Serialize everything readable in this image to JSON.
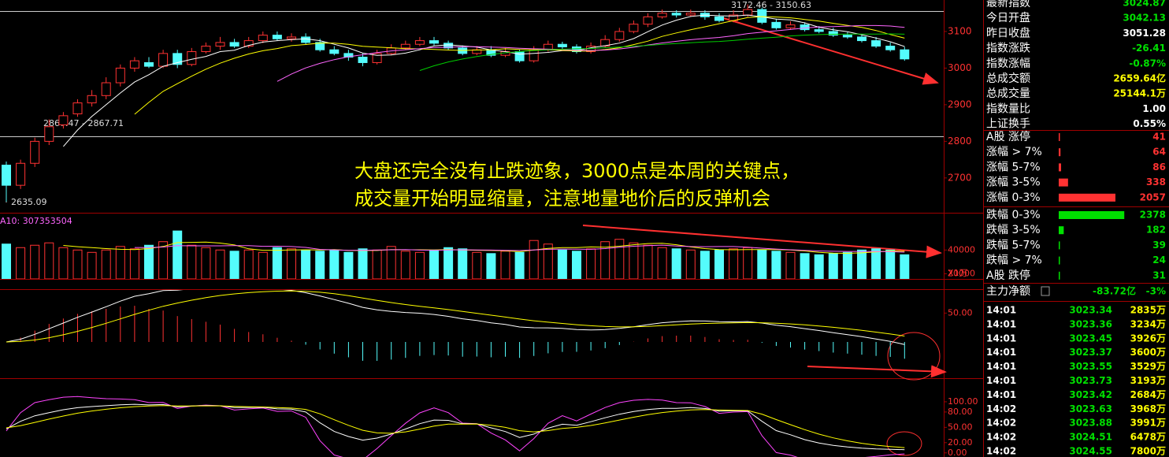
{
  "chart_data": {
    "type": "candlestick",
    "up_color": "#ff3232",
    "down_color": "#54fcfc",
    "ohlc": [
      [
        2735,
        2680,
        2745,
        2635
      ],
      [
        2680,
        2740,
        2750,
        2670
      ],
      [
        2740,
        2800,
        2810,
        2730
      ],
      [
        2800,
        2840,
        2860,
        2790
      ],
      [
        2845,
        2870,
        2880,
        2835
      ],
      [
        2875,
        2905,
        2915,
        2867
      ],
      [
        2905,
        2925,
        2940,
        2895
      ],
      [
        2925,
        2960,
        2975,
        2915
      ],
      [
        2960,
        3000,
        3010,
        2950
      ],
      [
        3000,
        3020,
        3030,
        2990
      ],
      [
        3015,
        3005,
        3030,
        3000
      ],
      [
        3005,
        3040,
        3050,
        3000
      ],
      [
        3040,
        3010,
        3050,
        3000
      ],
      [
        3010,
        3045,
        3055,
        3005
      ],
      [
        3045,
        3060,
        3070,
        3040
      ],
      [
        3060,
        3070,
        3085,
        3050
      ],
      [
        3070,
        3060,
        3080,
        3055
      ],
      [
        3060,
        3075,
        3085,
        3055
      ],
      [
        3075,
        3090,
        3100,
        3068
      ],
      [
        3090,
        3080,
        3100,
        3075
      ],
      [
        3080,
        3085,
        3095,
        3072
      ],
      [
        3085,
        3070,
        3095,
        3065
      ],
      [
        3070,
        3050,
        3080,
        3045
      ],
      [
        3050,
        3040,
        3060,
        3035
      ],
      [
        3040,
        3030,
        3050,
        3020
      ],
      [
        3030,
        3015,
        3040,
        3005
      ],
      [
        3015,
        3040,
        3050,
        3010
      ],
      [
        3040,
        3055,
        3065,
        3035
      ],
      [
        3055,
        3065,
        3075,
        3050
      ],
      [
        3065,
        3075,
        3085,
        3060
      ],
      [
        3075,
        3068,
        3085,
        3062
      ],
      [
        3068,
        3055,
        3075,
        3050
      ],
      [
        3055,
        3040,
        3062,
        3035
      ],
      [
        3040,
        3050,
        3060,
        3035
      ],
      [
        3050,
        3035,
        3060,
        3030
      ],
      [
        3035,
        3045,
        3055,
        3030
      ],
      [
        3045,
        3020,
        3050,
        3015
      ],
      [
        3020,
        3050,
        3060,
        3015
      ],
      [
        3050,
        3065,
        3075,
        3045
      ],
      [
        3065,
        3058,
        3072,
        3052
      ],
      [
        3058,
        3045,
        3065,
        3040
      ],
      [
        3045,
        3060,
        3070,
        3040
      ],
      [
        3060,
        3078,
        3090,
        3055
      ],
      [
        3078,
        3100,
        3110,
        3072
      ],
      [
        3100,
        3120,
        3130,
        3095
      ],
      [
        3120,
        3140,
        3150,
        3112
      ],
      [
        3140,
        3150,
        3160,
        3135
      ],
      [
        3150,
        3145,
        3158,
        3138
      ],
      [
        3145,
        3150,
        3160,
        3140
      ],
      [
        3150,
        3140,
        3158,
        3132
      ],
      [
        3140,
        3130,
        3150,
        3125
      ],
      [
        3130,
        3145,
        3158,
        3125
      ],
      [
        3145,
        3160,
        3174,
        3140
      ],
      [
        3160,
        3125,
        3165,
        3120
      ],
      [
        3125,
        3110,
        3135,
        3105
      ],
      [
        3110,
        3118,
        3128,
        3105
      ],
      [
        3118,
        3105,
        3125,
        3100
      ],
      [
        3105,
        3100,
        3115,
        3095
      ],
      [
        3100,
        3090,
        3110,
        3085
      ],
      [
        3090,
        3085,
        3098,
        3080
      ],
      [
        3085,
        3075,
        3092,
        3070
      ],
      [
        3075,
        3060,
        3085,
        3055
      ],
      [
        3060,
        3050,
        3070,
        3045
      ],
      [
        3050,
        3025,
        3058,
        3020
      ]
    ],
    "ylim": [
      2605,
      3186
    ],
    "yticks": [
      3100,
      3000,
      2900,
      2800,
      2700
    ],
    "price_labels": [
      "3172.46 - 3150.63",
      "2867.47 - 2867.71",
      "2635.09"
    ],
    "annotation": [
      "大盘还完全没有止跌迹象，3000点是本周的关键点，",
      "成交量开始明显缩量，注意地量地价后的反弹机会"
    ],
    "volume": {
      "label": "A10: 307353504",
      "unit": "X1万",
      "ylim": [
        17000,
        70000
      ],
      "yticks": [
        40000,
        20000
      ],
      "values": [
        45000,
        42000,
        44000,
        46000,
        42000,
        40000,
        38000,
        40000,
        43000,
        41000,
        44000,
        47000,
        56000,
        44000,
        42000,
        40000,
        39000,
        40000,
        38000,
        42000,
        41000,
        40000,
        39000,
        40000,
        38000,
        41000,
        40000,
        43000,
        39000,
        38000,
        40000,
        42000,
        41000,
        38000,
        37000,
        39000,
        38000,
        48000,
        45000,
        40000,
        39000,
        41000,
        47000,
        49000,
        46000,
        44000,
        42000,
        41000,
        40000,
        39000,
        40000,
        41000,
        42000,
        40000,
        39000,
        38000,
        37000,
        36000,
        37000,
        38000,
        40000,
        41000,
        40000,
        36000
      ]
    },
    "macd": {
      "ylim": [
        -60,
        90
      ],
      "yticks": [
        {
          "value": 50,
          "label": "50.00"
        }
      ]
    },
    "kdj": {
      "ylim": [
        -5,
        140
      ],
      "yticks": [
        {
          "value": 100,
          "label": "100.00"
        },
        {
          "value": 80,
          "label": "80.00"
        },
        {
          "value": 50,
          "label": "50.00"
        },
        {
          "value": 20,
          "label": "20.00"
        },
        {
          "value": 0,
          "label": "0.00"
        }
      ]
    }
  },
  "quote": [
    {
      "label": "最新指数",
      "value": "3024.87",
      "color": "#00e000"
    },
    {
      "label": "今日开盘",
      "value": "3042.13",
      "color": "#00e000"
    },
    {
      "label": "昨日收盘",
      "value": "3051.28",
      "color": "#ffffff"
    },
    {
      "label": "指数涨跌",
      "value": "-26.41",
      "color": "#00e000"
    },
    {
      "label": "指数涨幅",
      "value": "-0.87%",
      "color": "#00e000"
    },
    {
      "label": "总成交额",
      "value": "2659.64亿",
      "color": "#ffff00"
    },
    {
      "label": "总成交量",
      "value": "25144.1万",
      "color": "#ffff00"
    },
    {
      "label": "指数量比",
      "value": "1.00",
      "color": "#ffffff"
    },
    {
      "label": "上证换手",
      "value": "0.55%",
      "color": "#ffffff"
    }
  ],
  "breadth": [
    {
      "label": "A股 涨停",
      "count": 41,
      "color": "#ff3232"
    },
    {
      "label": "涨幅 > 7%",
      "count": 64,
      "color": "#ff3232"
    },
    {
      "label": "涨幅 5-7%",
      "count": 86,
      "color": "#ff3232"
    },
    {
      "label": "涨幅 3-5%",
      "count": 338,
      "color": "#ff3232"
    },
    {
      "label": "涨幅 0-3%",
      "count": 2057,
      "color": "#ff3232"
    },
    {
      "label": "跌幅 0-3%",
      "count": 2378,
      "color": "#00e000"
    },
    {
      "label": "跌幅 3-5%",
      "count": 182,
      "color": "#00e000"
    },
    {
      "label": "跌幅 5-7%",
      "count": 39,
      "color": "#00e000"
    },
    {
      "label": "跌幅 > 7%",
      "count": 24,
      "color": "#00e000"
    },
    {
      "label": "A股 跌停",
      "count": 31,
      "color": "#00e000"
    }
  ],
  "net_flow": {
    "label": "主力净额",
    "value": "-83.72亿",
    "pct": "-3%"
  },
  "trades": [
    [
      "14:01",
      "3023.34",
      "2835万"
    ],
    [
      "14:01",
      "3023.36",
      "3234万"
    ],
    [
      "14:01",
      "3023.45",
      "3926万"
    ],
    [
      "14:01",
      "3023.37",
      "3600万"
    ],
    [
      "14:01",
      "3023.55",
      "3529万"
    ],
    [
      "14:01",
      "3023.73",
      "3193万"
    ],
    [
      "14:01",
      "3023.42",
      "2684万"
    ],
    [
      "14:02",
      "3023.63",
      "3968万"
    ],
    [
      "14:02",
      "3023.88",
      "3991万"
    ],
    [
      "14:02",
      "3024.51",
      "6478万"
    ],
    [
      "14:02",
      "3024.55",
      "7800万"
    ]
  ]
}
